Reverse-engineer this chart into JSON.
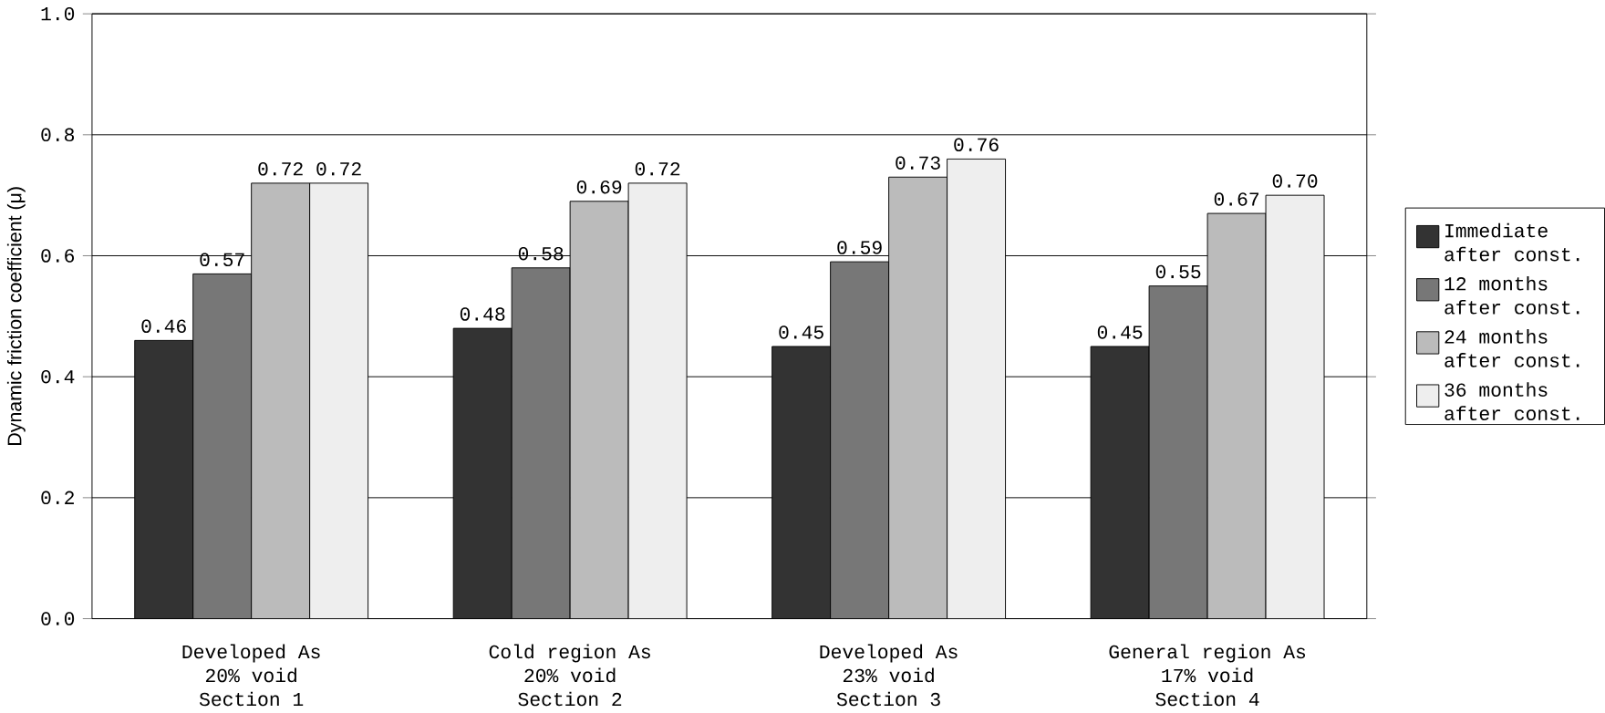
{
  "chart_data": {
    "type": "bar",
    "ylabel": "Dynamic friction coefficient (μ)",
    "categories": [
      "Developed As\n20% void\nSection 1",
      "Cold region As\n20% void\nSection 2",
      "Developed As\n23% void\nSection 3",
      "General region As\n17% void\nSection 4"
    ],
    "series": [
      {
        "name": "Immediate\nafter const.",
        "color": "#333333",
        "values": [
          0.46,
          0.48,
          0.45,
          0.45
        ],
        "value_labels": [
          "0.46",
          "0.48",
          "0.45",
          "0.45"
        ]
      },
      {
        "name": "12 months\nafter const.",
        "color": "#777777",
        "values": [
          0.57,
          0.58,
          0.59,
          0.55
        ],
        "value_labels": [
          "0.57",
          "0.58",
          "0.59",
          "0.55"
        ]
      },
      {
        "name": "24 months\nafter const.",
        "color": "#bbbbbb",
        "values": [
          0.72,
          0.69,
          0.73,
          0.67
        ],
        "value_labels": [
          "0.72",
          "0.69",
          "0.73",
          "0.67"
        ]
      },
      {
        "name": "36 months\nafter const.",
        "color": "#eeeeee",
        "values": [
          0.72,
          0.72,
          0.76,
          0.7
        ],
        "value_labels": [
          "0.72",
          "0.72",
          "0.76",
          "0.70"
        ]
      }
    ],
    "ylim": [
      0,
      1
    ],
    "yticks": [
      {
        "value": 0,
        "label": "0.0"
      },
      {
        "value": 0.2,
        "label": "0.2"
      },
      {
        "value": 0.4,
        "label": "0.4"
      },
      {
        "value": 0.6,
        "label": "0.6"
      },
      {
        "value": 0.8,
        "label": "0.8"
      },
      {
        "value": 1,
        "label": "1.0"
      }
    ],
    "grid": "y",
    "legend": "right"
  }
}
